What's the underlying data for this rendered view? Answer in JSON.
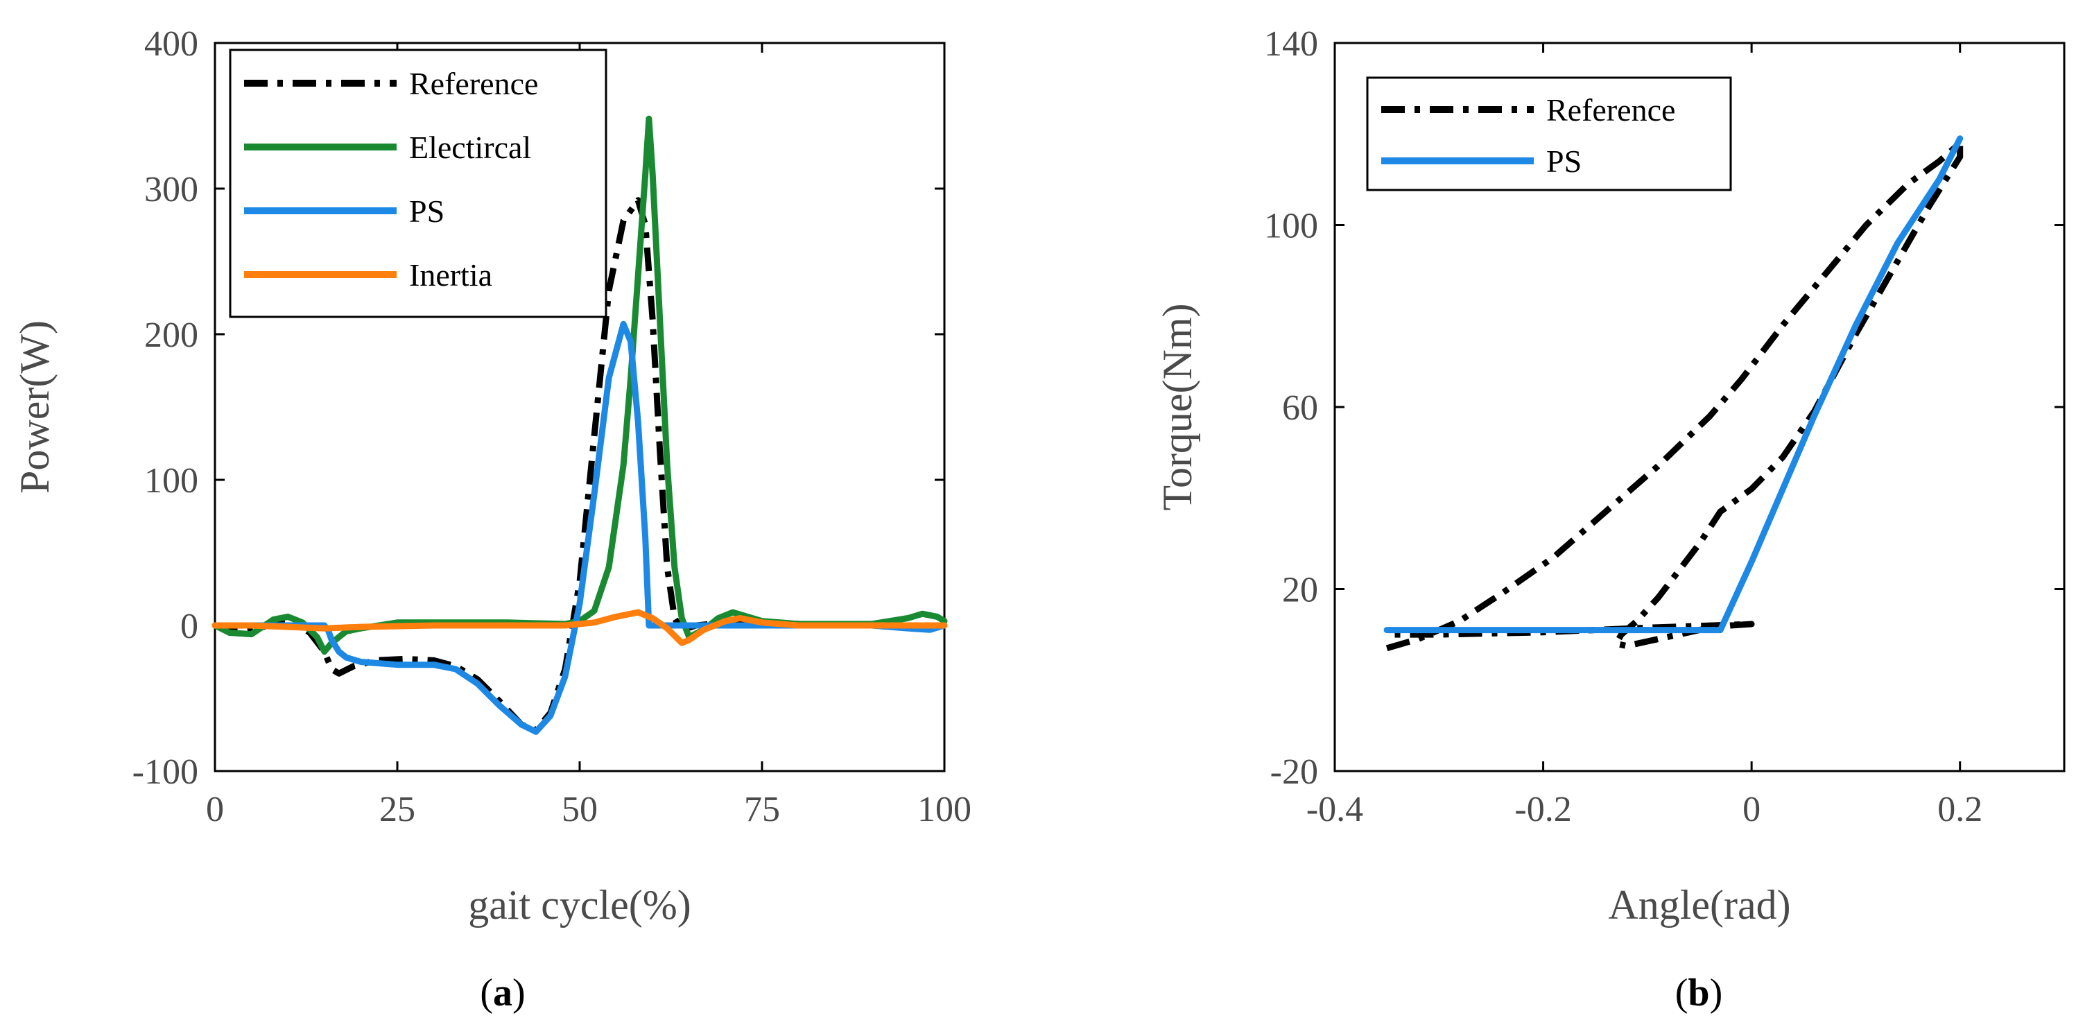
{
  "colors": {
    "reference": "#000000",
    "electrical": "#1a8a32",
    "ps": "#1e88e5",
    "inertia": "#ff7f0e",
    "axis": "#000000",
    "text": "#4a4a4a"
  },
  "captions": {
    "a_open": "(",
    "a_letter": "a",
    "a_close": ")",
    "b_open": "(",
    "b_letter": "b",
    "b_close": ")"
  },
  "chart_data": [
    {
      "id": "a",
      "type": "line",
      "xlabel": "gait cycle(%)",
      "ylabel": "Power(W)",
      "xlim": [
        0,
        100
      ],
      "ylim": [
        -100,
        400
      ],
      "xticks": [
        0,
        25,
        50,
        75,
        100
      ],
      "xtick_labels": [
        "0",
        "25",
        "50",
        "75",
        "100"
      ],
      "yticks": [
        -100,
        0,
        100,
        200,
        300,
        400
      ],
      "ytick_labels": [
        "-100",
        "0",
        "100",
        "200",
        "300",
        "400"
      ],
      "legend_position": "top-left",
      "series": [
        {
          "name": "Reference",
          "color_key": "reference",
          "style": "dashdot",
          "points": [
            [
              0,
              0
            ],
            [
              3,
              -4
            ],
            [
              6,
              -2
            ],
            [
              9,
              3
            ],
            [
              11,
              2
            ],
            [
              13,
              -5
            ],
            [
              15,
              -18
            ],
            [
              16,
              -30
            ],
            [
              17,
              -33
            ],
            [
              19,
              -28
            ],
            [
              22,
              -24
            ],
            [
              26,
              -23
            ],
            [
              30,
              -24
            ],
            [
              33,
              -28
            ],
            [
              36,
              -37
            ],
            [
              39,
              -52
            ],
            [
              42,
              -68
            ],
            [
              44,
              -72
            ],
            [
              46,
              -60
            ],
            [
              48,
              -30
            ],
            [
              50,
              30
            ],
            [
              52,
              130
            ],
            [
              54,
              230
            ],
            [
              56,
              278
            ],
            [
              58,
              292
            ],
            [
              59,
              275
            ],
            [
              60,
              210
            ],
            [
              61,
              120
            ],
            [
              62,
              40
            ],
            [
              63,
              5
            ],
            [
              64,
              -3
            ],
            [
              66,
              0
            ],
            [
              70,
              2
            ],
            [
              75,
              2
            ],
            [
              80,
              1
            ],
            [
              90,
              0
            ],
            [
              100,
              0
            ]
          ]
        },
        {
          "name": "Electircal",
          "color_key": "electrical",
          "style": "solid",
          "points": [
            [
              0,
              0
            ],
            [
              2,
              -5
            ],
            [
              5,
              -6
            ],
            [
              8,
              4
            ],
            [
              10,
              6
            ],
            [
              12,
              2
            ],
            [
              14,
              -8
            ],
            [
              15,
              -18
            ],
            [
              16,
              -12
            ],
            [
              18,
              -4
            ],
            [
              20,
              -2
            ],
            [
              25,
              2
            ],
            [
              30,
              2
            ],
            [
              40,
              2
            ],
            [
              48,
              1
            ],
            [
              50,
              3
            ],
            [
              52,
              10
            ],
            [
              54,
              40
            ],
            [
              56,
              110
            ],
            [
              57,
              170
            ],
            [
              58,
              240
            ],
            [
              59,
              310
            ],
            [
              59.5,
              348
            ],
            [
              60,
              310
            ],
            [
              61,
              210
            ],
            [
              62,
              110
            ],
            [
              63,
              40
            ],
            [
              64,
              5
            ],
            [
              65,
              -8
            ],
            [
              67,
              -3
            ],
            [
              69,
              5
            ],
            [
              71,
              9
            ],
            [
              73,
              6
            ],
            [
              75,
              3
            ],
            [
              80,
              1
            ],
            [
              90,
              1
            ],
            [
              95,
              5
            ],
            [
              97,
              8
            ],
            [
              99,
              6
            ],
            [
              100,
              3
            ]
          ]
        },
        {
          "name": "PS",
          "color_key": "ps",
          "style": "solid",
          "points": [
            [
              0,
              0
            ],
            [
              10,
              0
            ],
            [
              15,
              0
            ],
            [
              15.5,
              -3
            ],
            [
              16,
              -10
            ],
            [
              17,
              -18
            ],
            [
              18,
              -22
            ],
            [
              20,
              -25
            ],
            [
              25,
              -27
            ],
            [
              30,
              -27
            ],
            [
              33,
              -30
            ],
            [
              36,
              -40
            ],
            [
              39,
              -55
            ],
            [
              42,
              -68
            ],
            [
              44,
              -73
            ],
            [
              46,
              -62
            ],
            [
              48,
              -35
            ],
            [
              50,
              15
            ],
            [
              52,
              90
            ],
            [
              54,
              170
            ],
            [
              56,
              207
            ],
            [
              57,
              195
            ],
            [
              58,
              140
            ],
            [
              59,
              60
            ],
            [
              59.5,
              0
            ],
            [
              60,
              0
            ],
            [
              70,
              0
            ],
            [
              80,
              0
            ],
            [
              90,
              0
            ],
            [
              95,
              -2
            ],
            [
              98,
              -3
            ],
            [
              100,
              0
            ]
          ]
        },
        {
          "name": "Inertia",
          "color_key": "inertia",
          "style": "solid",
          "points": [
            [
              0,
              0
            ],
            [
              5,
              0
            ],
            [
              10,
              -1
            ],
            [
              15,
              -2
            ],
            [
              20,
              -1
            ],
            [
              30,
              0
            ],
            [
              40,
              0
            ],
            [
              48,
              0
            ],
            [
              52,
              2
            ],
            [
              55,
              6
            ],
            [
              58,
              9
            ],
            [
              60,
              5
            ],
            [
              62,
              -2
            ],
            [
              64,
              -12
            ],
            [
              65,
              -10
            ],
            [
              67,
              -3
            ],
            [
              70,
              3
            ],
            [
              72,
              5
            ],
            [
              75,
              2
            ],
            [
              80,
              0
            ],
            [
              90,
              0
            ],
            [
              100,
              0
            ]
          ]
        }
      ]
    },
    {
      "id": "b",
      "type": "line",
      "xlabel": "Angle(rad)",
      "ylabel": "Torque(Nm)",
      "xlim": [
        -0.4,
        0.3
      ],
      "ylim": [
        -20,
        140
      ],
      "xticks": [
        -0.4,
        -0.2,
        0,
        0.2
      ],
      "xtick_labels": [
        "-0.4",
        "-0.2",
        "0",
        "0.2"
      ],
      "yticks": [
        -20,
        20,
        60,
        100,
        140
      ],
      "ytick_labels": [
        "-20",
        "20",
        "60",
        "100",
        "140"
      ],
      "legend_position": "top-left",
      "series": [
        {
          "name": "Reference",
          "color_key": "reference",
          "style": "dashdot",
          "points": [
            [
              -0.35,
              7
            ],
            [
              -0.32,
              9
            ],
            [
              -0.28,
              13
            ],
            [
              -0.24,
              19
            ],
            [
              -0.19,
              27
            ],
            [
              -0.14,
              37
            ],
            [
              -0.09,
              47
            ],
            [
              -0.04,
              58
            ],
            [
              -0.01,
              66
            ],
            [
              0.03,
              78
            ],
            [
              0.07,
              89
            ],
            [
              0.11,
              100
            ],
            [
              0.15,
              109
            ],
            [
              0.18,
              114
            ],
            [
              0.2,
              118
            ],
            [
              0.2,
              115
            ],
            [
              0.17,
              104
            ],
            [
              0.14,
              92
            ],
            [
              0.1,
              76
            ],
            [
              0.06,
              59
            ],
            [
              0.03,
              49
            ],
            [
              0.0,
              42
            ],
            [
              -0.03,
              37
            ],
            [
              -0.05,
              30
            ],
            [
              -0.07,
              24
            ],
            [
              -0.09,
              18
            ],
            [
              -0.11,
              13
            ],
            [
              -0.125,
              10
            ],
            [
              -0.13,
              8
            ],
            [
              -0.12,
              7.5
            ],
            [
              -0.1,
              8.5
            ],
            [
              -0.08,
              9.5
            ],
            [
              -0.06,
              10.5
            ],
            [
              -0.04,
              11.5
            ],
            [
              -0.02,
              12
            ],
            [
              0.0,
              12.3
            ],
            [
              -0.1,
              11.5
            ],
            [
              -0.2,
              10.5
            ],
            [
              -0.3,
              10
            ],
            [
              -0.35,
              10
            ]
          ]
        },
        {
          "name": "PS",
          "color_key": "ps",
          "style": "solid",
          "points": [
            [
              -0.35,
              11
            ],
            [
              -0.03,
              11
            ],
            [
              0.0,
              26
            ],
            [
              0.03,
              42
            ],
            [
              0.06,
              58
            ],
            [
              0.1,
              78
            ],
            [
              0.14,
              96
            ],
            [
              0.18,
              110
            ],
            [
              0.2,
              119
            ]
          ]
        }
      ]
    }
  ]
}
